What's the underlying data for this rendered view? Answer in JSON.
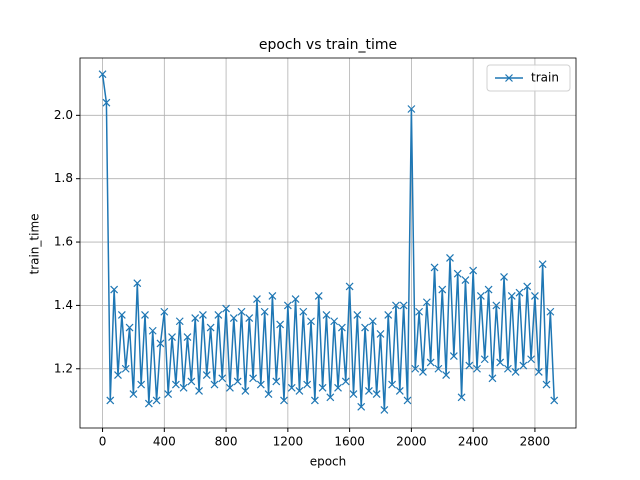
{
  "chart_data": {
    "type": "line",
    "title": "epoch vs train_time",
    "x_label": "epoch",
    "y_label": "train_time",
    "xlim": [
      -146,
      3066
    ],
    "ylim": [
      1.013,
      2.181
    ],
    "xticks": [
      0,
      400,
      800,
      1200,
      1600,
      2000,
      2400,
      2800
    ],
    "yticks": [
      1.2,
      1.4,
      1.6,
      1.8,
      {
        "value": 2,
        "label": "2.0"
      }
    ],
    "grid": true,
    "legend": "upper right",
    "marker": "x",
    "x": [
      0,
      25,
      50,
      75,
      100,
      125,
      150,
      175,
      200,
      225,
      250,
      275,
      300,
      325,
      350,
      375,
      400,
      425,
      450,
      475,
      500,
      525,
      550,
      575,
      600,
      625,
      650,
      675,
      700,
      725,
      750,
      775,
      800,
      825,
      850,
      875,
      900,
      925,
      950,
      975,
      1000,
      1025,
      1050,
      1075,
      1100,
      1125,
      1150,
      1175,
      1200,
      1225,
      1250,
      1275,
      1300,
      1325,
      1350,
      1375,
      1400,
      1425,
      1450,
      1475,
      1500,
      1525,
      1550,
      1575,
      1600,
      1625,
      1650,
      1675,
      1700,
      1725,
      1750,
      1775,
      1800,
      1825,
      1850,
      1875,
      1900,
      1925,
      1950,
      1975,
      2000,
      2025,
      2050,
      2075,
      2100,
      2125,
      2150,
      2175,
      2200,
      2225,
      2250,
      2275,
      2300,
      2325,
      2350,
      2375,
      2400,
      2425,
      2450,
      2475,
      2500,
      2525,
      2550,
      2575,
      2600,
      2625,
      2650,
      2675,
      2700,
      2725,
      2750,
      2775,
      2800,
      2825,
      2850,
      2875,
      2900,
      2925
    ],
    "series": [
      {
        "name": "train",
        "color": "#1f77b4",
        "values": [
          2.13,
          2.04,
          1.1,
          1.45,
          1.18,
          1.37,
          1.2,
          1.33,
          1.12,
          1.47,
          1.15,
          1.37,
          1.09,
          1.32,
          1.1,
          1.28,
          1.38,
          1.12,
          1.3,
          1.15,
          1.35,
          1.14,
          1.3,
          1.16,
          1.36,
          1.13,
          1.37,
          1.18,
          1.33,
          1.15,
          1.37,
          1.17,
          1.39,
          1.14,
          1.36,
          1.16,
          1.38,
          1.13,
          1.36,
          1.17,
          1.42,
          1.15,
          1.38,
          1.12,
          1.43,
          1.16,
          1.34,
          1.1,
          1.4,
          1.14,
          1.42,
          1.13,
          1.38,
          1.15,
          1.35,
          1.1,
          1.43,
          1.14,
          1.37,
          1.11,
          1.35,
          1.14,
          1.33,
          1.16,
          1.46,
          1.12,
          1.37,
          1.08,
          1.33,
          1.13,
          1.35,
          1.12,
          1.31,
          1.07,
          1.37,
          1.15,
          1.4,
          1.13,
          1.4,
          1.1,
          2.02,
          1.2,
          1.38,
          1.19,
          1.41,
          1.22,
          1.52,
          1.2,
          1.45,
          1.18,
          1.55,
          1.24,
          1.5,
          1.11,
          1.48,
          1.21,
          1.51,
          1.2,
          1.43,
          1.23,
          1.45,
          1.17,
          1.4,
          1.22,
          1.49,
          1.2,
          1.43,
          1.19,
          1.44,
          1.21,
          1.46,
          1.23,
          1.43,
          1.19,
          1.53,
          1.15,
          1.38,
          1.1
        ]
      }
    ]
  }
}
